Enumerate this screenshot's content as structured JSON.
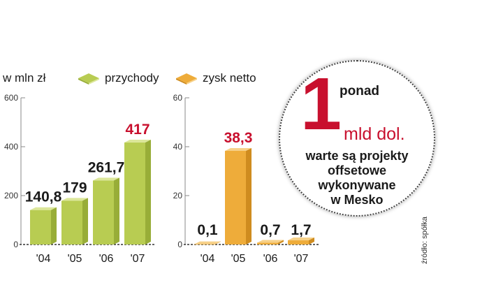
{
  "legend": {
    "unit": "w mln zł",
    "revenue_label": "przychody",
    "net_label": "zysk netto"
  },
  "colors": {
    "revenue_front": "#b8cc52",
    "revenue_side": "#98ad38",
    "revenue_top": "#dce79a",
    "net_front": "#eeac3a",
    "net_side": "#cf8c1f",
    "net_top": "#f7d189",
    "label_dark": "#1a1a1a",
    "label_highlight": "#c8102e",
    "axis": "#888888"
  },
  "chart_data": [
    {
      "type": "bar",
      "categories": [
        "'04",
        "'05",
        "'06",
        "'07"
      ],
      "series": [
        {
          "name": "przychody",
          "values": [
            140.8,
            179,
            261.7,
            417
          ]
        }
      ],
      "data_labels": [
        "140,8",
        "179",
        "261,7",
        "417"
      ],
      "highlight_index": 3,
      "yticks": [
        "0",
        "200",
        "400",
        "600"
      ],
      "ylim": [
        0,
        600
      ]
    },
    {
      "type": "bar",
      "categories": [
        "'04",
        "'05",
        "'06",
        "'07"
      ],
      "series": [
        {
          "name": "zysk netto",
          "values": [
            0.1,
            38.3,
            0.7,
            1.7
          ]
        }
      ],
      "data_labels": [
        "0,1",
        "38,3",
        "0,7",
        "1,7"
      ],
      "highlight_index": 1,
      "yticks": [
        "0",
        "20",
        "40",
        "60"
      ],
      "ylim": [
        0,
        60
      ]
    }
  ],
  "callout": {
    "number": "1",
    "prefix": "ponad",
    "unit": "mld dol.",
    "lines": [
      "warte są projekty",
      "offsetowe",
      "wykonywane",
      "w Mesko"
    ]
  },
  "source": "źródło: spółka"
}
